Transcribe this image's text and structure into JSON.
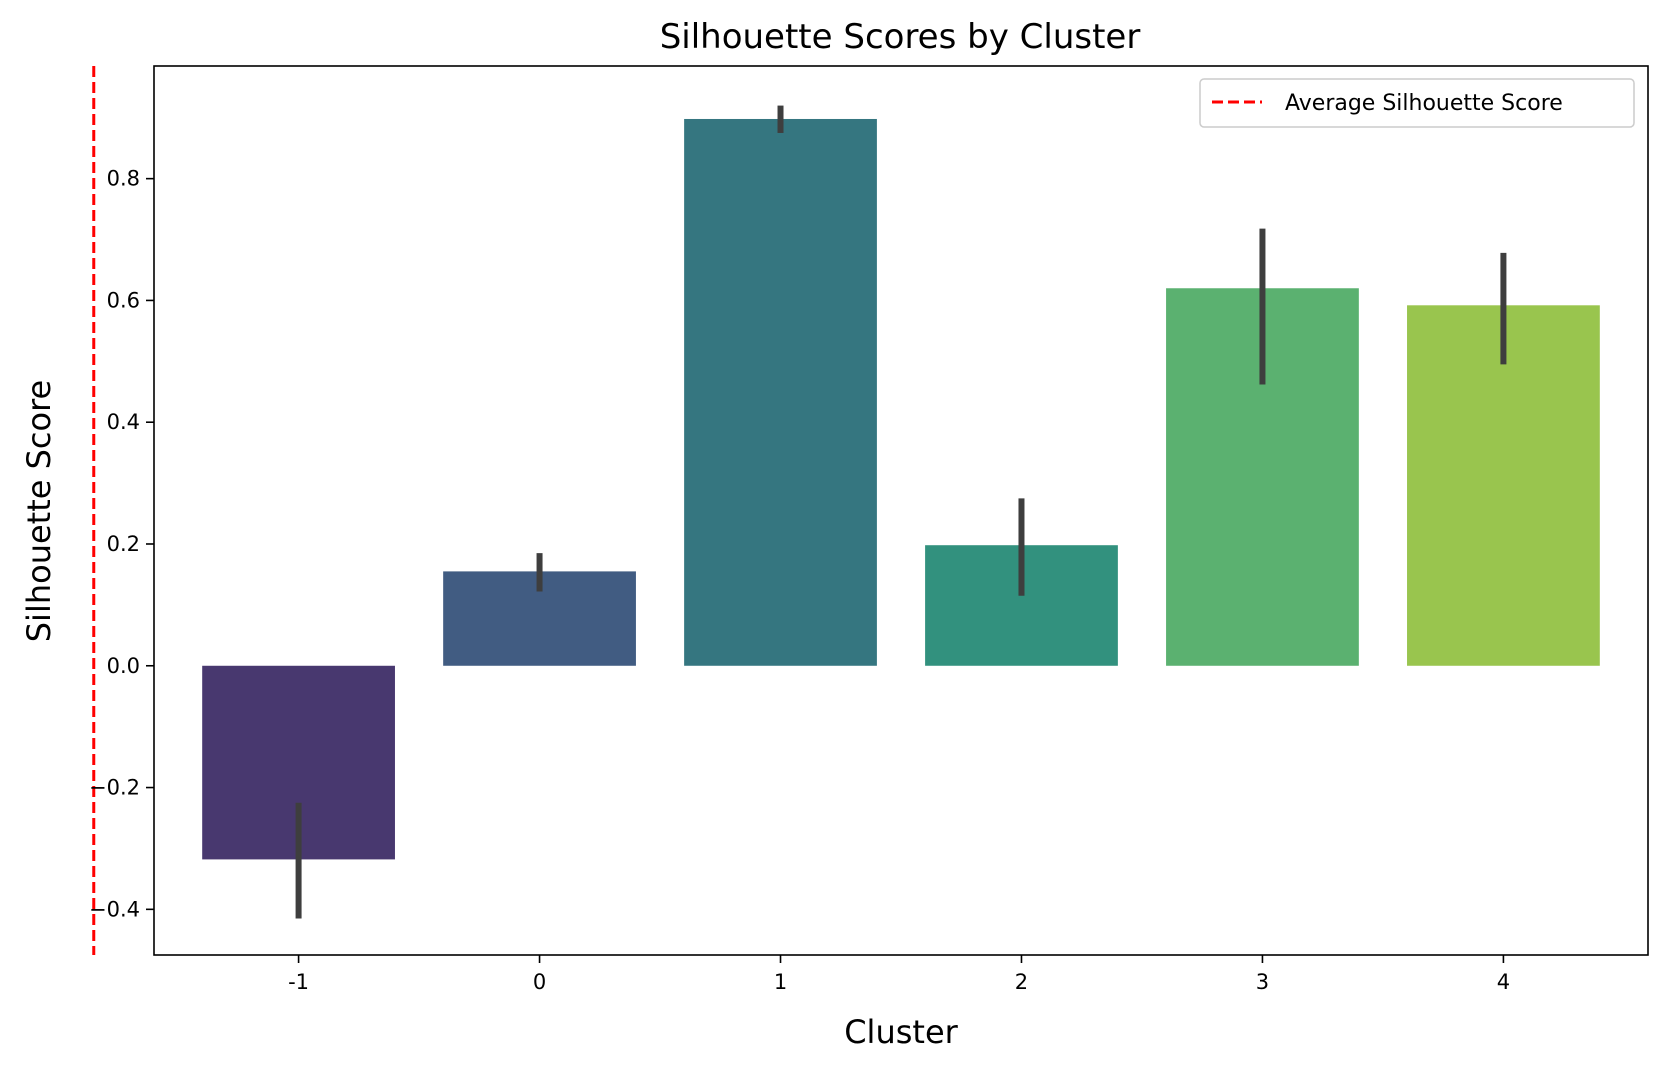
{
  "chart_data": {
    "type": "bar",
    "title": "Silhouette Scores by Cluster",
    "xlabel": "Cluster",
    "ylabel": "Silhouette Score",
    "categories": [
      "-1",
      "0",
      "1",
      "2",
      "3",
      "4"
    ],
    "values": [
      -0.318,
      0.155,
      0.898,
      0.198,
      0.62,
      0.592
    ],
    "error_low": [
      -0.415,
      0.122,
      0.875,
      0.115,
      0.462,
      0.495
    ],
    "error_high": [
      -0.225,
      0.185,
      0.92,
      0.275,
      0.718,
      0.678
    ],
    "colors": [
      "#48386f",
      "#415c82",
      "#357680",
      "#32917e",
      "#5bb170",
      "#99c54e"
    ],
    "error_color": "#3e3e3e",
    "ylim": [
      -0.475,
      0.985
    ],
    "yticks": [
      -0.4,
      -0.2,
      0.0,
      0.2,
      0.4,
      0.6,
      0.8
    ],
    "ytick_labels": [
      "−0.4",
      "−0.2",
      "0.0",
      "0.2",
      "0.4",
      "0.6",
      "0.8"
    ],
    "average_line": {
      "label": "Average Silhouette Score",
      "x": -0.85,
      "color": "#ff0000",
      "style": "dashed"
    },
    "legend_position": "top-right",
    "grid": false
  }
}
